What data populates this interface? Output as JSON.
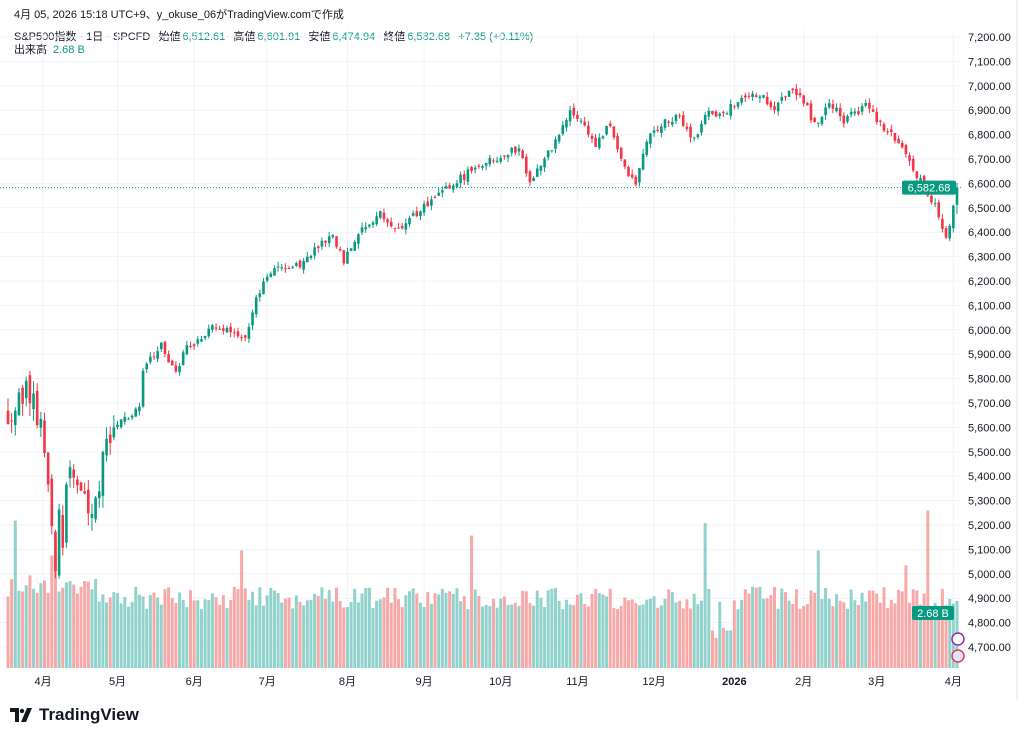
{
  "header": {
    "caption": "4月 05, 2026 15:18 UTC+9、y_okuse_06がTradingView.comで作成"
  },
  "legend": {
    "symbol": "S&P500指数 · 1日 · SPCFD",
    "open_label": "始値",
    "open": "6,512.61",
    "high_label": "高値",
    "high": "6,601.91",
    "low_label": "安値",
    "low": "6,474.94",
    "close_label": "終値",
    "close": "6,582.68",
    "change": "+7.35 (+0.11%)",
    "volume_label": "出来高",
    "volume": "2.68 B"
  },
  "footer": {
    "brand": "TradingView"
  },
  "colors": {
    "up": "#089981",
    "down": "#F23645",
    "vol_up": "#92D2CC",
    "vol_down": "#F7A9A7",
    "grid": "#F0F3FA"
  },
  "chart_data": {
    "type": "candlestick",
    "title": "S&P500指数 · 1日 · SPCFD",
    "y_ticks": [
      "7,200.00",
      "7,100.00",
      "7,000.00",
      "6,900.00",
      "6,800.00",
      "6,700.00",
      "6,600.00",
      "6,500.00",
      "6,400.00",
      "6,300.00",
      "6,200.00",
      "6,100.00",
      "6,000.00",
      "5,900.00",
      "5,800.00",
      "5,700.00",
      "5,600.00",
      "5,500.00",
      "5,400.00",
      "5,300.00",
      "5,200.00",
      "5,100.00",
      "5,000.00",
      "4,900.00",
      "4,800.00",
      "4,700.00"
    ],
    "ylim": [
      4650,
      7250
    ],
    "x_ticks": [
      {
        "day": 9.6,
        "label": "4月"
      },
      {
        "day": 30,
        "label": "5月"
      },
      {
        "day": 51,
        "label": "6月"
      },
      {
        "day": 71,
        "label": "7月"
      },
      {
        "day": 93,
        "label": "8月"
      },
      {
        "day": 114,
        "label": "9月"
      },
      {
        "day": 135,
        "label": "10月"
      },
      {
        "day": 156,
        "label": "11月"
      },
      {
        "day": 177,
        "label": "12月"
      },
      {
        "day": 199,
        "label": "2026"
      },
      {
        "day": 218,
        "label": "2月"
      },
      {
        "day": 238,
        "label": "3月"
      },
      {
        "day": 259,
        "label": "4月"
      }
    ],
    "num_days": 261,
    "close_keypoints": [
      [
        0,
        5650
      ],
      [
        3,
        5700
      ],
      [
        5,
        5753
      ],
      [
        7,
        5700
      ],
      [
        9,
        5590
      ],
      [
        11,
        5400
      ],
      [
        12,
        5180
      ],
      [
        13,
        5015
      ],
      [
        14,
        5300
      ],
      [
        15,
        5100
      ],
      [
        16,
        5385
      ],
      [
        18,
        5420
      ],
      [
        20,
        5345
      ],
      [
        23,
        5260
      ],
      [
        25,
        5380
      ],
      [
        25.5,
        5465
      ],
      [
        29,
        5590
      ],
      [
        33,
        5650
      ],
      [
        36,
        5670
      ],
      [
        37,
        5835
      ],
      [
        42,
        5940
      ],
      [
        46,
        5815
      ],
      [
        48,
        5920
      ],
      [
        52,
        5960
      ],
      [
        57,
        6020
      ],
      [
        61,
        6000
      ],
      [
        65,
        5980
      ],
      [
        68,
        6120
      ],
      [
        70,
        6205
      ],
      [
        74,
        6265
      ],
      [
        80,
        6265
      ],
      [
        85,
        6335
      ],
      [
        89,
        6390
      ],
      [
        92,
        6285
      ],
      [
        96,
        6390
      ],
      [
        102,
        6470
      ],
      [
        107,
        6410
      ],
      [
        113,
        6490
      ],
      [
        118,
        6550
      ],
      [
        124,
        6620
      ],
      [
        129,
        6675
      ],
      [
        135,
        6715
      ],
      [
        140,
        6745
      ],
      [
        143,
        6615
      ],
      [
        147,
        6695
      ],
      [
        151,
        6800
      ],
      [
        154,
        6890
      ],
      [
        157,
        6860
      ],
      [
        161,
        6755
      ],
      [
        165,
        6840
      ],
      [
        169,
        6655
      ],
      [
        172,
        6595
      ],
      [
        175,
        6780
      ],
      [
        179,
        6840
      ],
      [
        184,
        6870
      ],
      [
        188,
        6780
      ],
      [
        192,
        6900
      ],
      [
        196,
        6880
      ],
      [
        200,
        6940
      ],
      [
        206,
        6960
      ],
      [
        210,
        6900
      ],
      [
        214,
        6975
      ],
      [
        218,
        6940
      ],
      [
        221,
        6840
      ],
      [
        225,
        6940
      ],
      [
        229,
        6860
      ],
      [
        235,
        6920
      ],
      [
        239,
        6840
      ],
      [
        243,
        6780
      ],
      [
        247,
        6695
      ],
      [
        251,
        6575
      ],
      [
        254,
        6510
      ],
      [
        257,
        6370
      ],
      [
        258,
        6410
      ],
      [
        260,
        6582.68
      ]
    ],
    "volume_unit": "B",
    "volume_base": 2.8,
    "volume_spikes": [
      [
        2,
        5.9
      ],
      [
        12,
        4.5
      ],
      [
        13,
        5.2
      ],
      [
        64,
        4.7
      ],
      [
        127,
        5.3
      ],
      [
        191,
        5.8
      ],
      [
        193,
        1.5
      ],
      [
        194,
        1.2
      ],
      [
        196,
        1.6
      ],
      [
        197,
        1.5
      ],
      [
        198,
        1.5
      ],
      [
        222,
        4.7
      ],
      [
        246,
        4.1
      ],
      [
        252,
        6.3
      ]
    ],
    "last_price_label": "6,582.68",
    "last_volume_label": "2.68 B"
  }
}
